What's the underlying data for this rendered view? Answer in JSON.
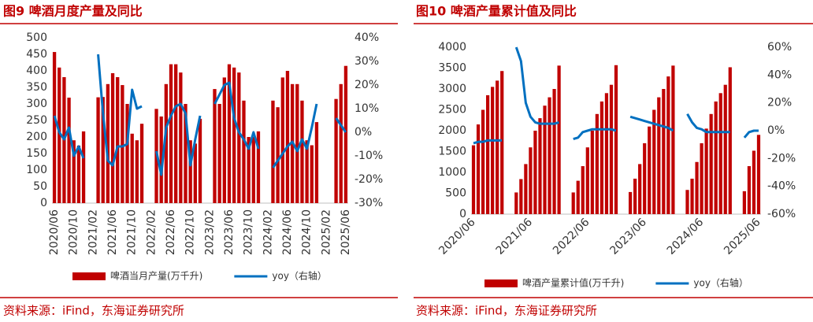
{
  "chart_data": [
    {
      "type": "combo",
      "title": "图9  啤酒月度产量及同比",
      "source": "资料来源：iFind，东海证券研究所",
      "categories": [
        "2020/06",
        null,
        null,
        null,
        "2020/10",
        null,
        null,
        null,
        "2021/02",
        null,
        null,
        null,
        "2021/06",
        null,
        null,
        null,
        "2021/10",
        null,
        null,
        null,
        "2022/02",
        null,
        null,
        null,
        "2022/06",
        null,
        null,
        null,
        "2022/10",
        null,
        null,
        null,
        "2023/02",
        null,
        null,
        null,
        "2023/06",
        null,
        null,
        null,
        "2023/10",
        null,
        null,
        null,
        "2024/02",
        null,
        null,
        null,
        "2024/06",
        null,
        null,
        null,
        "2024/10",
        null,
        null,
        null,
        "2025/02",
        null,
        null,
        null,
        "2025/06"
      ],
      "series": [
        {
          "name": "啤酒当月产量(万千升)",
          "type": "bar",
          "color": "#c00000",
          "values": [
            457,
            410,
            381,
            319,
            190,
            174,
            217,
            null,
            null,
            320,
            321,
            360,
            393,
            381,
            357,
            300,
            210,
            190,
            240,
            null,
            null,
            285,
            262,
            360,
            420,
            420,
            395,
            300,
            190,
            180,
            255,
            null,
            null,
            345,
            300,
            380,
            420,
            410,
            395,
            310,
            200,
            200,
            217,
            null,
            null,
            310,
            290,
            380,
            400,
            360,
            360,
            310,
            190,
            175,
            245,
            null,
            null,
            null,
            315,
            360,
            415
          ]
        },
        {
          "name": "yoy（右轴）",
          "type": "line",
          "color": "#0070c0",
          "axis": "y2",
          "values": [
            7,
            0,
            -3,
            2,
            -10,
            -6,
            -11,
            null,
            null,
            33,
            8,
            -12,
            -14,
            -6,
            -6,
            -5,
            18,
            10,
            11,
            null,
            null,
            -8,
            -18,
            2,
            7,
            11,
            12,
            8,
            -14,
            -3,
            7,
            null,
            null,
            12,
            16,
            20,
            21,
            6,
            0,
            -3,
            -7,
            0,
            -7,
            null,
            null,
            -15,
            -12,
            -9,
            -6,
            -4,
            -8,
            -3,
            -7,
            2,
            12,
            null,
            null,
            null,
            6,
            3,
            0
          ]
        }
      ],
      "ylim": [
        0,
        500
      ],
      "yticks": [
        0,
        50,
        100,
        150,
        200,
        250,
        300,
        350,
        400,
        450,
        500
      ],
      "y2lim": [
        -30,
        40
      ],
      "y2ticks": [
        {
          "value": -30,
          "label": "-30%"
        },
        {
          "value": -20,
          "label": "-20%"
        },
        {
          "value": -10,
          "label": "-10%"
        },
        {
          "value": 0,
          "label": "0%"
        },
        {
          "value": 10,
          "label": "10%"
        },
        {
          "value": 20,
          "label": "20%"
        },
        {
          "value": 30,
          "label": "30%"
        },
        {
          "value": 40,
          "label": "40%"
        }
      ],
      "grid": false
    },
    {
      "type": "combo",
      "title": "图10  啤酒产量累计值及同比",
      "source": "资料来源：iFind，东海证券研究所",
      "categories": [
        "2020/06",
        null,
        null,
        null,
        null,
        null,
        null,
        null,
        null,
        null,
        null,
        null,
        "2021/06",
        null,
        null,
        null,
        null,
        null,
        null,
        null,
        null,
        null,
        null,
        null,
        "2022/06",
        null,
        null,
        null,
        null,
        null,
        null,
        null,
        null,
        null,
        null,
        null,
        "2023/06",
        null,
        null,
        null,
        null,
        null,
        null,
        null,
        null,
        null,
        null,
        null,
        "2024/06",
        null,
        null,
        null,
        null,
        null,
        null,
        null,
        null,
        null,
        null,
        null,
        "2025/06"
      ],
      "series": [
        {
          "name": "啤酒产量累计值(万千升)",
          "type": "bar",
          "color": "#c00000",
          "values": [
            1650,
            2150,
            2500,
            2850,
            3050,
            3200,
            3430,
            null,
            null,
            520,
            840,
            1200,
            1600,
            2000,
            2300,
            2600,
            2800,
            3000,
            3560,
            null,
            null,
            520,
            800,
            1150,
            1600,
            2000,
            2400,
            2700,
            2900,
            3100,
            3570,
            null,
            null,
            530,
            850,
            1200,
            1700,
            2100,
            2500,
            2800,
            3000,
            3300,
            3560,
            null,
            null,
            580,
            850,
            1250,
            1700,
            2050,
            2400,
            2700,
            2900,
            3100,
            3520,
            null,
            null,
            550,
            1150,
            1520,
            1900
          ]
        },
        {
          "name": "yoy（右轴）",
          "type": "line",
          "color": "#0070c0",
          "axis": "y2",
          "values": [
            -9,
            -8,
            -8,
            -7,
            -7,
            -7,
            -7,
            null,
            null,
            60,
            50,
            20,
            10,
            6,
            5,
            5,
            5,
            5,
            6,
            null,
            null,
            -6,
            -5,
            -1,
            0,
            1,
            1,
            1,
            1,
            1,
            0,
            null,
            null,
            10,
            9,
            8,
            7,
            6,
            5,
            4,
            3,
            2,
            0,
            null,
            null,
            12,
            6,
            2,
            1,
            -1,
            -1,
            -1,
            -1,
            -1,
            -1,
            null,
            null,
            -5,
            -1,
            0,
            0
          ]
        }
      ],
      "ylim": [
        0,
        4000
      ],
      "yticks": [
        0,
        500,
        1000,
        1500,
        2000,
        2500,
        3000,
        3500,
        4000
      ],
      "y2lim": [
        -60,
        60
      ],
      "y2ticks": [
        {
          "value": -60,
          "label": "-60%"
        },
        {
          "value": -40,
          "label": "-40%"
        },
        {
          "value": -20,
          "label": "-20%"
        },
        {
          "value": 0,
          "label": "0%"
        },
        {
          "value": 20,
          "label": "20%"
        },
        {
          "value": 40,
          "label": "40%"
        },
        {
          "value": 60,
          "label": "60%"
        }
      ],
      "grid": false
    }
  ]
}
